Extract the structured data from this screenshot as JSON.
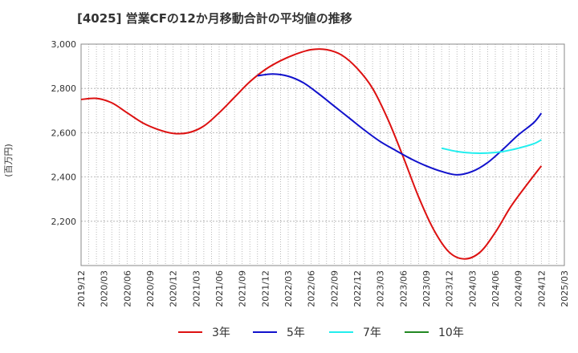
{
  "chart_data": {
    "type": "line",
    "title": "[4025]  営業CFの12か月移動合計の平均値の推移",
    "ylabel": "(百万円)",
    "xlabel": "",
    "ylim": [
      2000,
      3000
    ],
    "yticks": [
      2200,
      2400,
      2600,
      2800,
      3000
    ],
    "ytick_labels": [
      "2,200",
      "2,400",
      "2,600",
      "2,800",
      "3,000"
    ],
    "xticks": [
      "2019/12",
      "2020/03",
      "2020/06",
      "2020/09",
      "2020/12",
      "2021/03",
      "2021/06",
      "2021/09",
      "2021/12",
      "2022/03",
      "2022/06",
      "2022/09",
      "2022/12",
      "2023/03",
      "2023/06",
      "2023/09",
      "2023/12",
      "2024/03",
      "2024/06",
      "2024/09",
      "2024/12",
      "2025/03"
    ],
    "grid": true,
    "legend_position": "bottom",
    "series": [
      {
        "name": "3年",
        "color": "#dd1111",
        "points": [
          [
            "2019/12",
            2750
          ],
          [
            "2020/02",
            2755
          ],
          [
            "2020/04",
            2735
          ],
          [
            "2020/06",
            2690
          ],
          [
            "2020/08",
            2645
          ],
          [
            "2020/10",
            2615
          ],
          [
            "2020/12",
            2597
          ],
          [
            "2021/02",
            2600
          ],
          [
            "2021/04",
            2630
          ],
          [
            "2021/06",
            2690
          ],
          [
            "2021/08",
            2760
          ],
          [
            "2021/10",
            2830
          ],
          [
            "2021/12",
            2885
          ],
          [
            "2022/02",
            2925
          ],
          [
            "2022/04",
            2955
          ],
          [
            "2022/06",
            2975
          ],
          [
            "2022/08",
            2975
          ],
          [
            "2022/10",
            2950
          ],
          [
            "2022/12",
            2890
          ],
          [
            "2023/02",
            2800
          ],
          [
            "2023/04",
            2660
          ],
          [
            "2023/06",
            2490
          ],
          [
            "2023/08",
            2310
          ],
          [
            "2023/10",
            2160
          ],
          [
            "2023/12",
            2060
          ],
          [
            "2024/02",
            2030
          ],
          [
            "2024/04",
            2060
          ],
          [
            "2024/06",
            2150
          ],
          [
            "2024/08",
            2265
          ],
          [
            "2024/10",
            2360
          ],
          [
            "2024/12",
            2450
          ]
        ]
      },
      {
        "name": "5年",
        "color": "#1111cc",
        "points": [
          [
            "2021/11",
            2857
          ],
          [
            "2022/01",
            2865
          ],
          [
            "2022/03",
            2855
          ],
          [
            "2022/05",
            2825
          ],
          [
            "2022/07",
            2775
          ],
          [
            "2022/09",
            2720
          ],
          [
            "2022/11",
            2665
          ],
          [
            "2023/01",
            2610
          ],
          [
            "2023/03",
            2560
          ],
          [
            "2023/05",
            2520
          ],
          [
            "2023/07",
            2482
          ],
          [
            "2023/09",
            2450
          ],
          [
            "2023/11",
            2425
          ],
          [
            "2024/01",
            2410
          ],
          [
            "2024/03",
            2425
          ],
          [
            "2024/05",
            2465
          ],
          [
            "2024/07",
            2525
          ],
          [
            "2024/09",
            2590
          ],
          [
            "2024/11",
            2645
          ],
          [
            "2024/12",
            2688
          ]
        ]
      },
      {
        "name": "7年",
        "color": "#22eeee",
        "points": [
          [
            "2023/11",
            2530
          ],
          [
            "2024/01",
            2515
          ],
          [
            "2024/03",
            2508
          ],
          [
            "2024/05",
            2508
          ],
          [
            "2024/07",
            2515
          ],
          [
            "2024/09",
            2530
          ],
          [
            "2024/11",
            2550
          ],
          [
            "2024/12",
            2568
          ]
        ]
      },
      {
        "name": "10年",
        "color": "#228822",
        "points": []
      }
    ]
  }
}
